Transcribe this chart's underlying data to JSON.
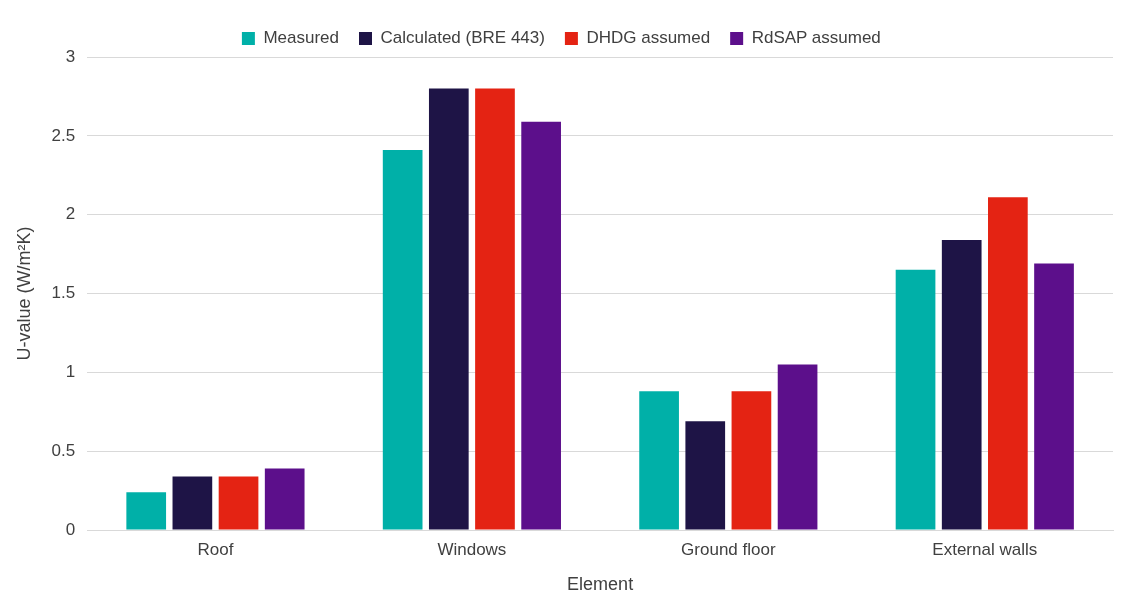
{
  "chart_data": {
    "type": "bar",
    "xlabel": "Element",
    "ylabel": "U-value (W/m²K)",
    "categories": [
      "Roof",
      "Windows",
      "Ground floor",
      "External walls"
    ],
    "series": [
      {
        "name": "Measured",
        "color": "#00b0a8",
        "values": [
          0.24,
          2.41,
          0.88,
          1.65
        ]
      },
      {
        "name": "Calculated (BRE 443)",
        "color": "#1e1446",
        "values": [
          0.34,
          2.8,
          0.69,
          1.84
        ]
      },
      {
        "name": "DHDG assumed",
        "color": "#e42313",
        "values": [
          0.34,
          2.8,
          0.88,
          2.11
        ]
      },
      {
        "name": "RdSAP assumed",
        "color": "#5c0f8b",
        "values": [
          0.39,
          2.59,
          1.05,
          1.69
        ]
      }
    ],
    "ylim": [
      0,
      3
    ],
    "yticks": [
      0,
      0.5,
      1,
      1.5,
      2,
      2.5,
      3
    ],
    "grid": "y",
    "legend": "top"
  }
}
